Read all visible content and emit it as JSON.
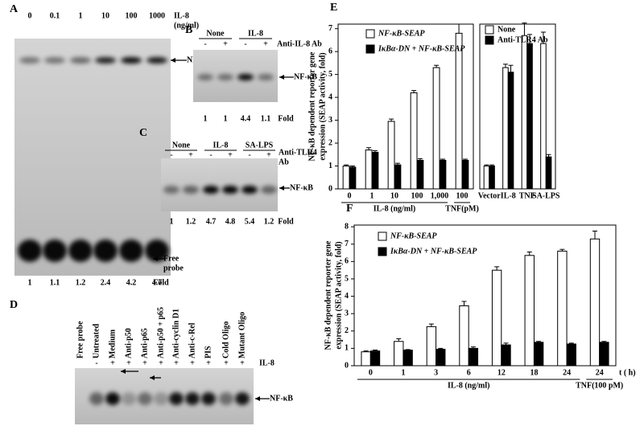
{
  "gels": [
    {
      "letter": "A",
      "lanes": [
        "0",
        "0.1",
        "1",
        "10",
        "100",
        "1000"
      ],
      "treatment": [
        "IL-8",
        "(ng/ml)"
      ],
      "band": "NF-κB",
      "free_probe": [
        "Free",
        "probe"
      ],
      "folds": [
        1,
        1.1,
        1.2,
        2.4,
        4.2,
        4.7
      ],
      "fold_label": "Fold"
    },
    {
      "letter": "B",
      "groups": [
        "None",
        "IL-8"
      ],
      "signs": [
        "-",
        "+",
        "-",
        "+"
      ],
      "treatment": [
        "Anti-IL-8 Ab"
      ],
      "band": "NF-κB",
      "folds": [
        1,
        1,
        4.4,
        1.1
      ],
      "fold_label": "Fold"
    },
    {
      "letter": "C",
      "groups": [
        "None",
        "IL-8",
        "SA-LPS"
      ],
      "signs": [
        "-",
        "+",
        "-",
        "+",
        "-",
        "+"
      ],
      "treatment": [
        "Anti-TLR4",
        "Ab"
      ],
      "band": "NF-κB",
      "folds": [
        1,
        1.2,
        4.7,
        4.8,
        5.4,
        1.2
      ],
      "fold_label": "Fold"
    },
    {
      "letter": "D",
      "lanes": [
        "Free probe",
        "Untreated",
        "Medium",
        "Anti-p50",
        "Anti-p65",
        "Anti-p50 + p65",
        "Anti-cyclin D1",
        "Anti-c-Rel",
        "PIS",
        "Cold Oligo",
        "Mutant Oligo"
      ],
      "signs": [
        "-",
        "+",
        "+",
        "+",
        "+",
        "+",
        "+",
        "+",
        "+",
        "+"
      ],
      "treatment": [
        "IL-8"
      ],
      "band": "NF-κB"
    }
  ],
  "chart_data": [
    {
      "type": "bar",
      "panel": "E",
      "y_label": [
        "NF-κB dependent reporter gene",
        "expression (SEAP activity, fold)"
      ],
      "categories": [
        "0",
        "1",
        "10",
        "100",
        "1,000",
        "100"
      ],
      "x_groups": [
        "IL-8 (ng/ml)",
        "TNF(pM)"
      ],
      "ylim": [
        0,
        7.2
      ],
      "yticks": [
        0,
        1,
        2,
        3,
        4,
        5,
        6,
        7
      ],
      "series": [
        {
          "name": "NF-κB-SEAP",
          "color": "#ffffff",
          "values": [
            1.0,
            1.7,
            2.95,
            4.2,
            5.3,
            6.8
          ],
          "errors": [
            0.05,
            0.1,
            0.1,
            0.1,
            0.1,
            0.4
          ]
        },
        {
          "name": "IκBα-DN + NF-κB-SEAP",
          "color": "#000000",
          "values": [
            0.95,
            1.6,
            1.05,
            1.25,
            1.25,
            1.25
          ],
          "errors": [
            0.05,
            0.07,
            0.07,
            0.07,
            0.05,
            0.05
          ]
        }
      ]
    },
    {
      "type": "bar",
      "categories": [
        "Vector",
        "IL-8",
        "TNF",
        "SA-LPS"
      ],
      "ylim": [
        0,
        7.2
      ],
      "series": [
        {
          "name": "None",
          "color": "#ffffff",
          "values": [
            1.0,
            5.3,
            6.7,
            6.35
          ],
          "errors": [
            0.05,
            0.15,
            0.55,
            0.5
          ]
        },
        {
          "name": "Anti-TLR4 Ab",
          "color": "#000000",
          "values": [
            1.0,
            5.1,
            6.35,
            1.4
          ],
          "errors": [
            0.05,
            0.3,
            0.4,
            0.1
          ]
        }
      ]
    },
    {
      "type": "bar",
      "panel": "F",
      "y_label": [
        "NF-κB dependent reporter gene",
        "expression (SEAP activity, fold)"
      ],
      "x_label": "t ( h)",
      "categories": [
        "0",
        "1",
        "3",
        "6",
        "12",
        "18",
        "24",
        "24"
      ],
      "x_groups": [
        "IL-8 (ng/ml)",
        "TNF(100 pM)"
      ],
      "ylim": [
        0,
        8.1
      ],
      "yticks": [
        0,
        1,
        2,
        3,
        4,
        5,
        6,
        7,
        8
      ],
      "series": [
        {
          "name": "NF-κB-SEAP",
          "color": "#ffffff",
          "values": [
            0.8,
            1.4,
            2.25,
            3.45,
            5.5,
            6.35,
            6.6,
            7.3
          ],
          "errors": [
            0.05,
            0.15,
            0.15,
            0.25,
            0.2,
            0.2,
            0.1,
            0.45
          ]
        },
        {
          "name": "IκBα-DN + NF-κB-SEAP",
          "color": "#000000",
          "values": [
            0.85,
            0.9,
            0.95,
            1.0,
            1.2,
            1.35,
            1.25,
            1.35
          ],
          "errors": [
            0.05,
            0.03,
            0.05,
            0.08,
            0.1,
            0.05,
            0.05,
            0.05
          ]
        }
      ]
    }
  ]
}
